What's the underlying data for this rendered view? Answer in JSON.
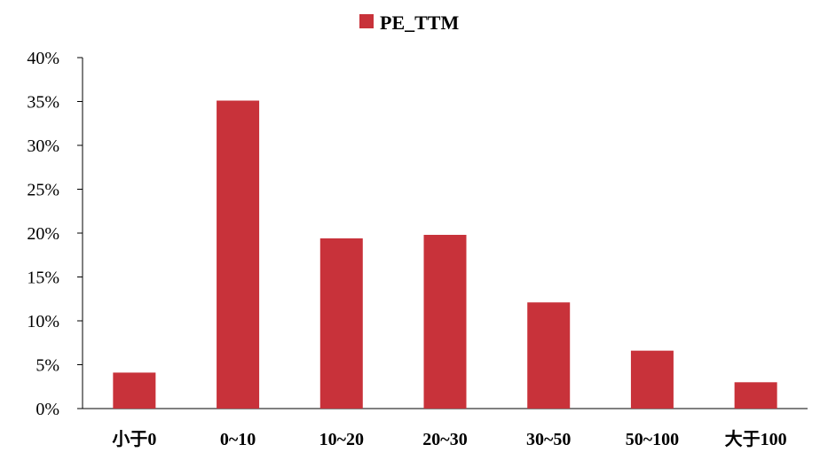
{
  "chart_data": {
    "type": "bar",
    "categories": [
      "小于0",
      "0~10",
      "10~20",
      "20~30",
      "30~50",
      "50~100",
      "大于100"
    ],
    "series": [
      {
        "name": "PE_TTM",
        "values": [
          4.1,
          35.1,
          19.4,
          19.8,
          12.1,
          6.6,
          3.0
        ]
      }
    ],
    "ylim": [
      0,
      40
    ],
    "yticks": [
      "0%",
      "5%",
      "10%",
      "15%",
      "20%",
      "25%",
      "30%",
      "35%",
      "40%"
    ],
    "ytick_values": [
      0,
      5,
      10,
      15,
      20,
      25,
      30,
      35,
      40
    ],
    "legend_position": "top-center",
    "grid": false,
    "bar_color": "#c8323a"
  }
}
